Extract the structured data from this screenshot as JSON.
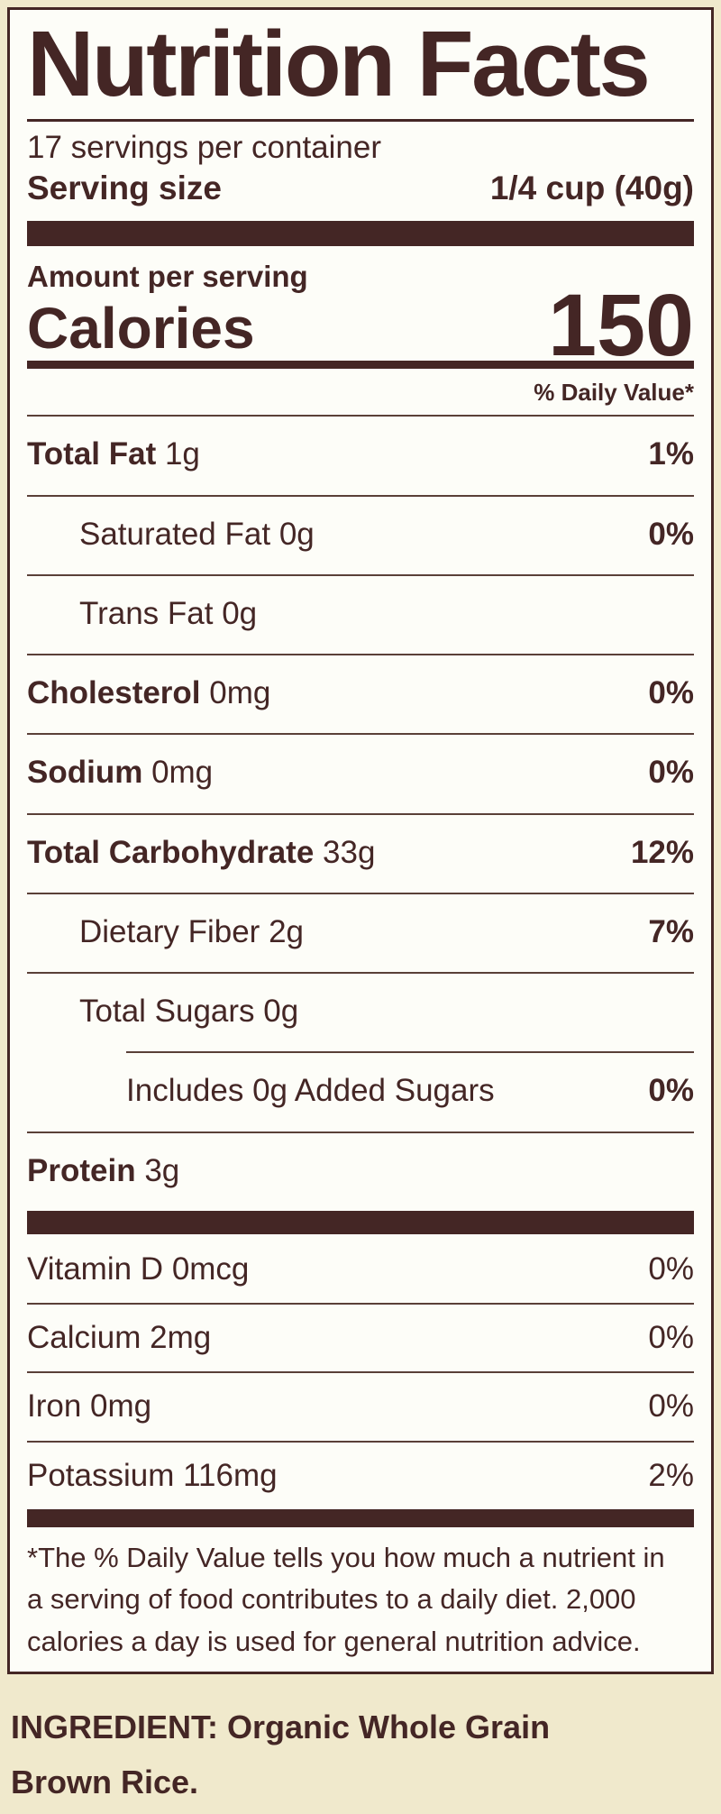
{
  "colors": {
    "text": "#442625",
    "background": "#f0e9cc",
    "label_background": "#fdfdf8",
    "rule": "#5a4038"
  },
  "label": {
    "title": "Nutrition Facts",
    "servings_per_container": "17 servings per container",
    "serving_size_label": "Serving size",
    "serving_size_value": "1/4 cup (40g)",
    "amount_per_serving": "Amount per serving",
    "calories_label": "Calories",
    "calories_value": "150",
    "daily_value_header": "% Daily Value*",
    "nutrients": [
      {
        "name": "Total Fat",
        "amount": "1g",
        "dv": "1%"
      },
      {
        "name": "Saturated Fat",
        "amount": "0g",
        "dv": "0%"
      },
      {
        "name": "Trans Fat",
        "amount": "0g",
        "dv": ""
      },
      {
        "name": "Cholesterol",
        "amount": "0mg",
        "dv": "0%"
      },
      {
        "name": "Sodium",
        "amount": "0mg",
        "dv": "0%"
      },
      {
        "name": "Total Carbohydrate",
        "amount": "33g",
        "dv": "12%"
      },
      {
        "name": "Dietary Fiber",
        "amount": "2g",
        "dv": "7%"
      },
      {
        "name": "Total Sugars",
        "amount": "0g",
        "dv": ""
      },
      {
        "name": "Includes 0g Added Sugars",
        "amount": "",
        "dv": "0%"
      },
      {
        "name": "Protein",
        "amount": "3g",
        "dv": ""
      }
    ],
    "vitamins": [
      {
        "name": "Vitamin D",
        "amount": "0mcg",
        "dv": "0%"
      },
      {
        "name": "Calcium",
        "amount": "2mg",
        "dv": "0%"
      },
      {
        "name": "Iron",
        "amount": "0mg",
        "dv": "0%"
      },
      {
        "name": "Potassium",
        "amount": "116mg",
        "dv": "2%"
      }
    ],
    "footnote_lines": {
      "line1": "*The % Daily Value tells you how much a nutrient in",
      "line2": "a serving of food contributes to a daily diet. 2,000",
      "line3": "calories a day is used for general nutrition advice."
    }
  },
  "ingredient": {
    "statement": "INGREDIENT: Organic Whole Grain Brown Rice."
  }
}
